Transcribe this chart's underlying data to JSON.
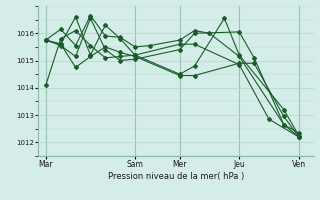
{
  "background_color": "#d4ede8",
  "grid_color": "#b0d8cc",
  "line_color": "#1a5c2a",
  "title": "Pression niveau de la mer( hPa )",
  "ylim": [
    1011.5,
    1017.0
  ],
  "yticks": [
    1012,
    1013,
    1014,
    1015,
    1016
  ],
  "day_labels": [
    "Mar",
    "Sam",
    "Mer",
    "Jeu",
    "Ven"
  ],
  "day_positions": [
    0,
    36,
    54,
    78,
    102
  ],
  "lines": [
    {
      "x": [
        0,
        6,
        12,
        18,
        24,
        30,
        36,
        54,
        60,
        78,
        90,
        102
      ],
      "y": [
        1014.1,
        1015.8,
        1016.1,
        1015.55,
        1015.1,
        1015.15,
        1015.2,
        1015.6,
        1015.6,
        1014.85,
        1012.85,
        1012.2
      ]
    },
    {
      "x": [
        0,
        6,
        12,
        18,
        24,
        30,
        36,
        42,
        54,
        60,
        66,
        78,
        96,
        102
      ],
      "y": [
        1015.75,
        1016.15,
        1015.55,
        1016.65,
        1015.9,
        1015.85,
        1015.5,
        1015.55,
        1015.75,
        1016.1,
        1016.0,
        1015.15,
        1012.65,
        1012.35
      ]
    },
    {
      "x": [
        0,
        6,
        12,
        18,
        24,
        30,
        36,
        54,
        60,
        78,
        84,
        96,
        102
      ],
      "y": [
        1015.75,
        1015.6,
        1014.75,
        1015.15,
        1015.5,
        1015.3,
        1015.15,
        1014.45,
        1014.45,
        1014.9,
        1014.9,
        1012.95,
        1012.2
      ]
    },
    {
      "x": [
        0,
        6,
        12,
        18,
        24,
        30,
        36,
        54,
        60,
        72,
        78,
        96,
        102
      ],
      "y": [
        1015.75,
        1015.6,
        1016.6,
        1015.2,
        1016.3,
        1015.8,
        1015.2,
        1014.5,
        1014.8,
        1016.55,
        1015.2,
        1013.2,
        1012.25
      ]
    },
    {
      "x": [
        0,
        6,
        12,
        18,
        24,
        30,
        36,
        54,
        60,
        78,
        84,
        96,
        102
      ],
      "y": [
        1015.75,
        1015.55,
        1015.15,
        1016.55,
        1015.4,
        1015.0,
        1015.05,
        1015.4,
        1016.0,
        1016.05,
        1015.1,
        1012.65,
        1012.2
      ]
    }
  ],
  "xlim": [
    -3,
    108
  ],
  "vline_positions": [
    0,
    36,
    54,
    78,
    102
  ]
}
